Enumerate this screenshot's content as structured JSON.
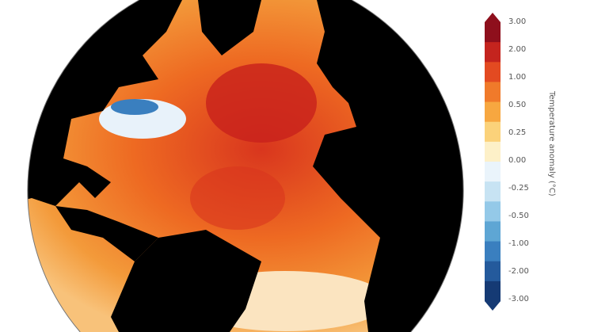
{
  "colorbar": {
    "label": "Temperature anomaly (°C)",
    "ticks": [
      "3.00",
      "2.00",
      "1.00",
      "0.50",
      "0.25",
      "0.00",
      "-0.25",
      "-0.50",
      "-1.00",
      "-2.00",
      "-3.00"
    ],
    "colors": [
      "#8e0f1c",
      "#c4241e",
      "#e34a21",
      "#f07a2a",
      "#f7a740",
      "#fbd27a",
      "#fdf0c8",
      "#eaf4fb",
      "#c7e3f3",
      "#94c9e8",
      "#5ea6d4",
      "#3a7fbf",
      "#245a9c",
      "#153a74"
    ]
  },
  "map": {
    "land_color": "#000000",
    "ocean_anomaly": "warm"
  }
}
